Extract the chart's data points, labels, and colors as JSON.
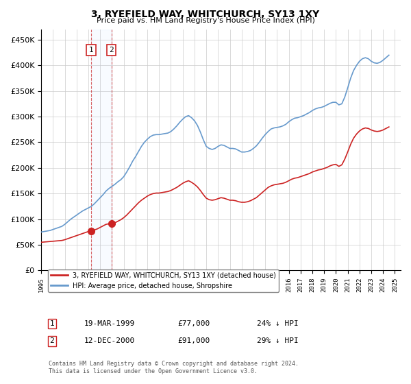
{
  "title": "3, RYEFIELD WAY, WHITCHURCH, SY13 1XY",
  "subtitle": "Price paid vs. HM Land Registry's House Price Index (HPI)",
  "ylabel_ticks": [
    "£0",
    "£50K",
    "£100K",
    "£150K",
    "£200K",
    "£250K",
    "£300K",
    "£350K",
    "£400K",
    "£450K"
  ],
  "ytick_values": [
    0,
    50000,
    100000,
    150000,
    200000,
    250000,
    300000,
    350000,
    400000,
    450000
  ],
  "ylim": [
    0,
    470000
  ],
  "xlim_start": 1995.0,
  "xlim_end": 2025.5,
  "hpi_color": "#6699cc",
  "price_color": "#cc2222",
  "sale1_date": 1999.22,
  "sale1_price": 77000,
  "sale2_date": 2000.95,
  "sale2_price": 91000,
  "background_color": "#ffffff",
  "grid_color": "#cccccc",
  "legend_label_red": "3, RYEFIELD WAY, WHITCHURCH, SY13 1XY (detached house)",
  "legend_label_blue": "HPI: Average price, detached house, Shropshire",
  "annotation1_label": "1",
  "annotation1_date": "19-MAR-1999",
  "annotation1_price": "£77,000",
  "annotation1_hpi": "24% ↓ HPI",
  "annotation2_label": "2",
  "annotation2_date": "12-DEC-2000",
  "annotation2_price": "£91,000",
  "annotation2_hpi": "29% ↓ HPI",
  "footer": "Contains HM Land Registry data © Crown copyright and database right 2024.\nThis data is licensed under the Open Government Licence v3.0.",
  "hpi_data_x": [
    1995.0,
    1995.25,
    1995.5,
    1995.75,
    1996.0,
    1996.25,
    1996.5,
    1996.75,
    1997.0,
    1997.25,
    1997.5,
    1997.75,
    1998.0,
    1998.25,
    1998.5,
    1998.75,
    1999.0,
    1999.25,
    1999.5,
    1999.75,
    2000.0,
    2000.25,
    2000.5,
    2000.75,
    2001.0,
    2001.25,
    2001.5,
    2001.75,
    2002.0,
    2002.25,
    2002.5,
    2002.75,
    2003.0,
    2003.25,
    2003.5,
    2003.75,
    2004.0,
    2004.25,
    2004.5,
    2004.75,
    2005.0,
    2005.25,
    2005.5,
    2005.75,
    2006.0,
    2006.25,
    2006.5,
    2006.75,
    2007.0,
    2007.25,
    2007.5,
    2007.75,
    2008.0,
    2008.25,
    2008.5,
    2008.75,
    2009.0,
    2009.25,
    2009.5,
    2009.75,
    2010.0,
    2010.25,
    2010.5,
    2010.75,
    2011.0,
    2011.25,
    2011.5,
    2011.75,
    2012.0,
    2012.25,
    2012.5,
    2012.75,
    2013.0,
    2013.25,
    2013.5,
    2013.75,
    2014.0,
    2014.25,
    2014.5,
    2014.75,
    2015.0,
    2015.25,
    2015.5,
    2015.75,
    2016.0,
    2016.25,
    2016.5,
    2016.75,
    2017.0,
    2017.25,
    2017.5,
    2017.75,
    2018.0,
    2018.25,
    2018.5,
    2018.75,
    2019.0,
    2019.25,
    2019.5,
    2019.75,
    2020.0,
    2020.25,
    2020.5,
    2020.75,
    2021.0,
    2021.25,
    2021.5,
    2021.75,
    2022.0,
    2022.25,
    2022.5,
    2022.75,
    2023.0,
    2023.25,
    2023.5,
    2023.75,
    2024.0,
    2024.25,
    2024.5
  ],
  "hpi_data_y": [
    75000,
    76000,
    77000,
    78000,
    80000,
    82000,
    84000,
    86000,
    90000,
    95000,
    100000,
    104000,
    108000,
    112000,
    116000,
    119000,
    122000,
    125000,
    130000,
    136000,
    142000,
    148000,
    155000,
    160000,
    164000,
    168000,
    173000,
    177000,
    183000,
    192000,
    202000,
    213000,
    222000,
    232000,
    242000,
    250000,
    256000,
    261000,
    264000,
    265000,
    265000,
    266000,
    267000,
    268000,
    271000,
    276000,
    282000,
    289000,
    295000,
    300000,
    302000,
    298000,
    292000,
    283000,
    270000,
    255000,
    242000,
    238000,
    236000,
    238000,
    242000,
    245000,
    244000,
    241000,
    238000,
    238000,
    237000,
    234000,
    231000,
    231000,
    232000,
    234000,
    238000,
    243000,
    250000,
    258000,
    265000,
    271000,
    276000,
    278000,
    279000,
    280000,
    282000,
    285000,
    290000,
    294000,
    297000,
    298000,
    300000,
    302000,
    305000,
    308000,
    312000,
    315000,
    317000,
    318000,
    320000,
    323000,
    326000,
    328000,
    328000,
    323000,
    325000,
    338000,
    356000,
    375000,
    390000,
    400000,
    408000,
    413000,
    415000,
    413000,
    408000,
    405000,
    404000,
    406000,
    410000,
    415000,
    420000
  ],
  "price_data_x": [
    1995.0,
    1995.25,
    1995.5,
    1995.75,
    1996.0,
    1996.25,
    1996.5,
    1996.75,
    1997.0,
    1997.25,
    1997.5,
    1997.75,
    1998.0,
    1998.25,
    1998.5,
    1998.75,
    1999.0,
    1999.25,
    1999.5,
    1999.75,
    2000.0,
    2000.25,
    2000.5,
    2000.75,
    2001.0,
    2001.25,
    2001.5,
    2001.75,
    2002.0,
    2002.25,
    2002.5,
    2002.75,
    2003.0,
    2003.25,
    2003.5,
    2003.75,
    2004.0,
    2004.25,
    2004.5,
    2004.75,
    2005.0,
    2005.25,
    2005.5,
    2005.75,
    2006.0,
    2006.25,
    2006.5,
    2006.75,
    2007.0,
    2007.25,
    2007.5,
    2007.75,
    2008.0,
    2008.25,
    2008.5,
    2008.75,
    2009.0,
    2009.25,
    2009.5,
    2009.75,
    2010.0,
    2010.25,
    2010.5,
    2010.75,
    2011.0,
    2011.25,
    2011.5,
    2011.75,
    2012.0,
    2012.25,
    2012.5,
    2012.75,
    2013.0,
    2013.25,
    2013.5,
    2013.75,
    2014.0,
    2014.25,
    2014.5,
    2014.75,
    2015.0,
    2015.25,
    2015.5,
    2015.75,
    2016.0,
    2016.25,
    2016.5,
    2016.75,
    2017.0,
    2017.25,
    2017.5,
    2017.75,
    2018.0,
    2018.25,
    2018.5,
    2018.75,
    2019.0,
    2019.25,
    2019.5,
    2019.75,
    2020.0,
    2020.25,
    2020.5,
    2020.75,
    2021.0,
    2021.25,
    2021.5,
    2021.75,
    2022.0,
    2022.25,
    2022.5,
    2022.75,
    2023.0,
    2023.25,
    2023.5,
    2023.75,
    2024.0,
    2024.25,
    2024.5
  ],
  "price_data_y": [
    55000,
    55500,
    56000,
    56500,
    57000,
    57500,
    58000,
    58500,
    60000,
    62000,
    64000,
    66000,
    68000,
    70000,
    72000,
    74000,
    76000,
    77000,
    79000,
    81000,
    84000,
    87000,
    90000,
    91000,
    91000,
    93000,
    96000,
    99000,
    103000,
    108000,
    114000,
    120000,
    126000,
    132000,
    137000,
    141000,
    145000,
    148000,
    150000,
    151000,
    151000,
    152000,
    153000,
    154000,
    156000,
    159000,
    162000,
    166000,
    170000,
    173000,
    175000,
    172000,
    168000,
    163000,
    156000,
    148000,
    141000,
    138000,
    137000,
    138000,
    140000,
    142000,
    141000,
    139000,
    137000,
    137000,
    136000,
    134000,
    133000,
    133000,
    134000,
    136000,
    139000,
    142000,
    147000,
    152000,
    157000,
    162000,
    165000,
    167000,
    168000,
    169000,
    170000,
    172000,
    175000,
    178000,
    180000,
    181000,
    183000,
    185000,
    187000,
    189000,
    192000,
    194000,
    196000,
    197000,
    199000,
    201000,
    204000,
    206000,
    207000,
    203000,
    206000,
    217000,
    231000,
    246000,
    258000,
    266000,
    272000,
    276000,
    278000,
    277000,
    274000,
    272000,
    271000,
    272000,
    274000,
    277000,
    280000
  ]
}
